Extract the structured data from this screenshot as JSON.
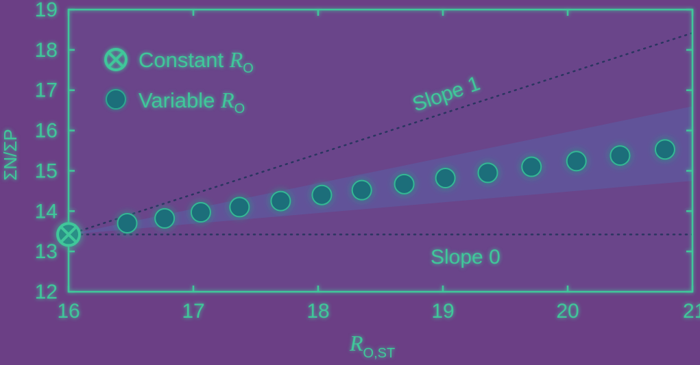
{
  "chart_data": {
    "type": "scatter",
    "xlim": [
      16,
      21
    ],
    "ylim": [
      12,
      19
    ],
    "x_ticks": [
      "16",
      "17",
      "18",
      "19",
      "20",
      "21"
    ],
    "y_ticks": [
      "12",
      "13",
      "14",
      "15",
      "16",
      "17",
      "18",
      "19"
    ],
    "xlabel": {
      "main": "R",
      "sub": "O,ST"
    },
    "ylabel": "ΣN/ΣP",
    "grid": false,
    "legend_position": "top-left",
    "legend": [
      {
        "main": "Constant ",
        "r": "R",
        "sub": "O",
        "marker": "circle-x"
      },
      {
        "main": "Variable ",
        "r": "R",
        "sub": "O",
        "marker": "filled-circle"
      }
    ],
    "series": [
      {
        "legend_index": 0,
        "marker": "circle-x",
        "points": [
          {
            "x": 16.0,
            "y": 13.42
          }
        ]
      },
      {
        "legend_index": 1,
        "marker": "filled-circle",
        "points": [
          {
            "x": 16.47,
            "y": 13.7
          },
          {
            "x": 16.77,
            "y": 13.82
          },
          {
            "x": 17.06,
            "y": 13.97
          },
          {
            "x": 17.37,
            "y": 14.1
          },
          {
            "x": 17.7,
            "y": 14.25
          },
          {
            "x": 18.03,
            "y": 14.4
          },
          {
            "x": 18.35,
            "y": 14.52
          },
          {
            "x": 18.69,
            "y": 14.67
          },
          {
            "x": 19.02,
            "y": 14.82
          },
          {
            "x": 19.36,
            "y": 14.95
          },
          {
            "x": 19.71,
            "y": 15.1
          },
          {
            "x": 20.07,
            "y": 15.24
          },
          {
            "x": 20.42,
            "y": 15.38
          },
          {
            "x": 20.78,
            "y": 15.53
          }
        ]
      }
    ],
    "reference_lines": [
      {
        "label": "Slope 1",
        "style": "dotted",
        "from": {
          "x": 16.0,
          "y": 13.42
        },
        "to": {
          "x": 21.0,
          "y": 18.42
        }
      },
      {
        "label": "Slope 0",
        "style": "dotted",
        "from": {
          "x": 16.0,
          "y": 13.42
        },
        "to": {
          "x": 21.0,
          "y": 13.42
        }
      }
    ],
    "band": {
      "from": {
        "x": 16.0,
        "y": 13.42
      },
      "upper_end": {
        "x": 21.0,
        "y": 16.6
      },
      "lower_end": {
        "x": 21.0,
        "y": 14.75
      }
    },
    "colors": {
      "background": "#6b3f85",
      "foreground": "#3fc79a",
      "marker": "#1b6e7a",
      "band": "#5a5fa6"
    }
  }
}
